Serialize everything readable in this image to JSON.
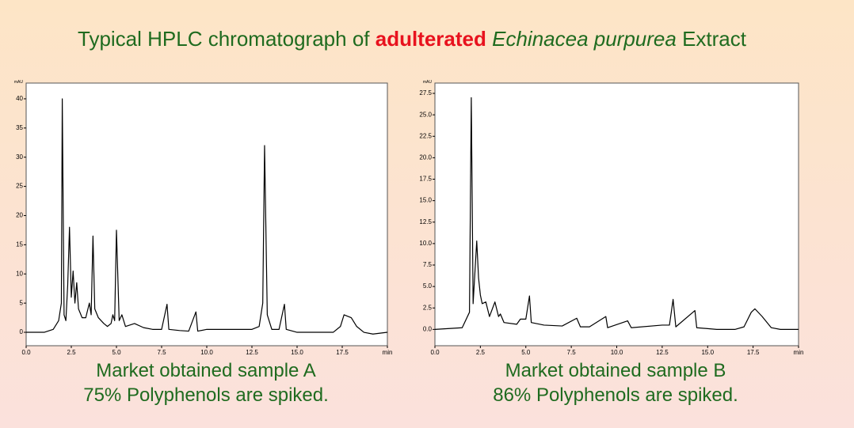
{
  "slide": {
    "title": [
      "Typical HPLC chromatograph of ",
      "adulterated",
      " Echinacea purpurea",
      " Extract"
    ]
  },
  "chart_data": [
    {
      "type": "line",
      "y_label": "mAU",
      "caption": [
        "Market obtained sample A",
        "75% Polyphenols are spiked."
      ],
      "xlim": [
        0,
        20
      ],
      "ylim": [
        -2.3,
        42.7
      ],
      "xticks": [
        {
          "value": 0,
          "label": "0.0"
        },
        2.5,
        {
          "value": 5,
          "label": "5.0"
        },
        7.5,
        {
          "value": 10,
          "label": "10.0"
        },
        12.5,
        {
          "value": 15,
          "label": "15.0"
        },
        17.5,
        {
          "value": 20,
          "label": "min"
        }
      ],
      "yticks": [
        0,
        5,
        10,
        15,
        20,
        25,
        30,
        35,
        40
      ],
      "series": [
        {
          "color": "#000000",
          "x": [
            0.0,
            1.0,
            1.5,
            1.8,
            1.95,
            2.0,
            2.1,
            2.2,
            2.3,
            2.4,
            2.5,
            2.6,
            2.7,
            2.8,
            2.9,
            3.1,
            3.3,
            3.5,
            3.6,
            3.7,
            3.8,
            4.0,
            4.3,
            4.5,
            4.7,
            4.8,
            4.9,
            5.0,
            5.15,
            5.3,
            5.5,
            6.0,
            6.5,
            7.0,
            7.5,
            7.8,
            7.9,
            8.5,
            9.0,
            9.4,
            9.5,
            10.0,
            11.0,
            12.0,
            12.5,
            12.9,
            13.1,
            13.2,
            13.35,
            13.6,
            14.0,
            14.3,
            14.4,
            15.0,
            16.0,
            17.0,
            17.4,
            17.6,
            18.0,
            18.3,
            18.7,
            19.2,
            20.0
          ],
          "values": [
            0,
            0,
            0.5,
            2,
            5,
            40,
            3,
            2,
            8,
            18,
            6,
            10.5,
            5,
            8.5,
            4,
            2.5,
            2.5,
            5,
            3,
            16.5,
            4,
            2.5,
            1.5,
            1,
            1.5,
            3,
            2,
            17.5,
            2,
            3,
            1,
            1.5,
            0.8,
            0.5,
            0.5,
            4.8,
            0.5,
            0.3,
            0.2,
            3.5,
            0.2,
            0.5,
            0.5,
            0.5,
            0.5,
            1,
            5,
            32,
            3,
            0.5,
            0.5,
            4.8,
            0.5,
            0,
            0,
            0,
            1,
            3,
            2.5,
            1,
            0,
            -0.3,
            0
          ]
        }
      ]
    },
    {
      "type": "line",
      "y_label": "mAU",
      "caption": [
        "Market obtained sample B",
        "86% Polyphenols are spiked."
      ],
      "xlim": [
        0,
        20
      ],
      "ylim": [
        -1.9,
        28.7
      ],
      "xticks": [
        {
          "value": 0,
          "label": "0.0"
        },
        2.5,
        {
          "value": 5,
          "label": "5.0"
        },
        7.5,
        {
          "value": 10,
          "label": "10.0"
        },
        12.5,
        {
          "value": 15,
          "label": "15.0"
        },
        17.5,
        {
          "value": 20,
          "label": "min"
        }
      ],
      "yticks": [
        {
          "value": 0,
          "label": "0.0"
        },
        2.5,
        {
          "value": 5,
          "label": "5.0"
        },
        7.5,
        {
          "value": 10,
          "label": "10.0"
        },
        12.5,
        {
          "value": 15,
          "label": "15.0"
        },
        17.5,
        {
          "value": 20,
          "label": "20.0"
        },
        22.5,
        {
          "value": 25,
          "label": "25.0"
        },
        27.5
      ],
      "series": [
        {
          "color": "#000000",
          "x": [
            0.0,
            1.5,
            1.9,
            2.0,
            2.1,
            2.3,
            2.4,
            2.5,
            2.6,
            2.8,
            3.0,
            3.3,
            3.5,
            3.6,
            3.8,
            4.5,
            4.7,
            5.0,
            5.2,
            5.3,
            6.0,
            7.0,
            7.8,
            8.0,
            8.5,
            9.4,
            9.5,
            10.6,
            10.8,
            12.5,
            12.9,
            13.1,
            13.25,
            14.3,
            14.4,
            15.5,
            16.5,
            17.0,
            17.4,
            17.6,
            18.0,
            18.5,
            19.0,
            20.0
          ],
          "values": [
            0,
            0.2,
            2,
            27,
            3,
            10.3,
            6,
            4,
            3,
            3.2,
            1.5,
            3.2,
            1.5,
            1.8,
            0.8,
            0.6,
            1.2,
            1.2,
            3.9,
            0.8,
            0.5,
            0.4,
            1.3,
            0.3,
            0.3,
            1.5,
            0.2,
            1,
            0.2,
            0.5,
            0.5,
            3.5,
            0.3,
            2.2,
            0.2,
            0,
            0,
            0.3,
            2,
            2.4,
            1.5,
            0.2,
            0,
            0
          ]
        }
      ]
    }
  ]
}
